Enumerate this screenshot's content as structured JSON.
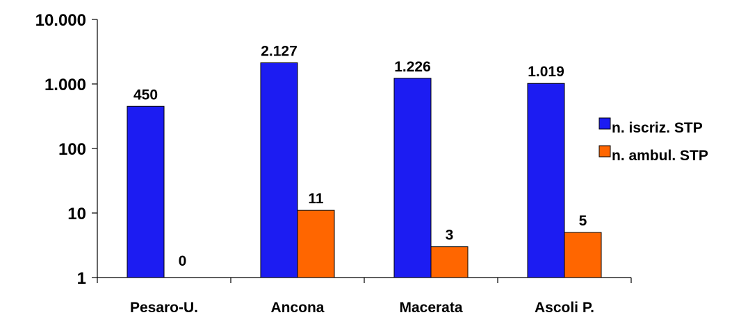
{
  "chart_data": {
    "type": "bar",
    "scale": "log",
    "ylim": [
      1,
      10000
    ],
    "y_ticks": [
      {
        "value": 1,
        "label": "1"
      },
      {
        "value": 10,
        "label": "10"
      },
      {
        "value": 100,
        "label": "100"
      },
      {
        "value": 1000,
        "label": "1.000"
      },
      {
        "value": 10000,
        "label": "10.000"
      }
    ],
    "categories": [
      "Pesaro-U.",
      "Ancona",
      "Macerata",
      "Ascoli P."
    ],
    "series": [
      {
        "name": "n. iscriz. STP",
        "color": "#1c1cf2",
        "values": [
          450,
          2127,
          1226,
          1019
        ],
        "labels": [
          "450",
          "2.127",
          "1.226",
          "1.019"
        ]
      },
      {
        "name": "n. ambul. STP",
        "color": "#ff6600",
        "values": [
          0,
          11,
          3,
          5
        ],
        "labels": [
          "0",
          "11",
          "3",
          "5"
        ]
      }
    ],
    "legend_position": "right",
    "grid": false
  }
}
